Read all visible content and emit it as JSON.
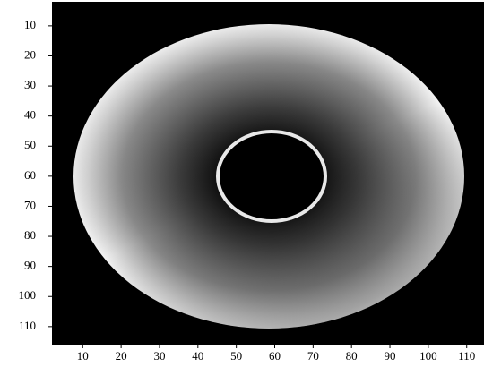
{
  "chart_data": {
    "type": "image",
    "xlim": [
      2,
      114.5
    ],
    "ylim": [
      2,
      116
    ],
    "xticks": [
      10,
      20,
      30,
      40,
      50,
      60,
      70,
      80,
      90,
      100,
      110
    ],
    "yticks": [
      10,
      20,
      30,
      40,
      50,
      60,
      70,
      80,
      90,
      100,
      110
    ]
  }
}
